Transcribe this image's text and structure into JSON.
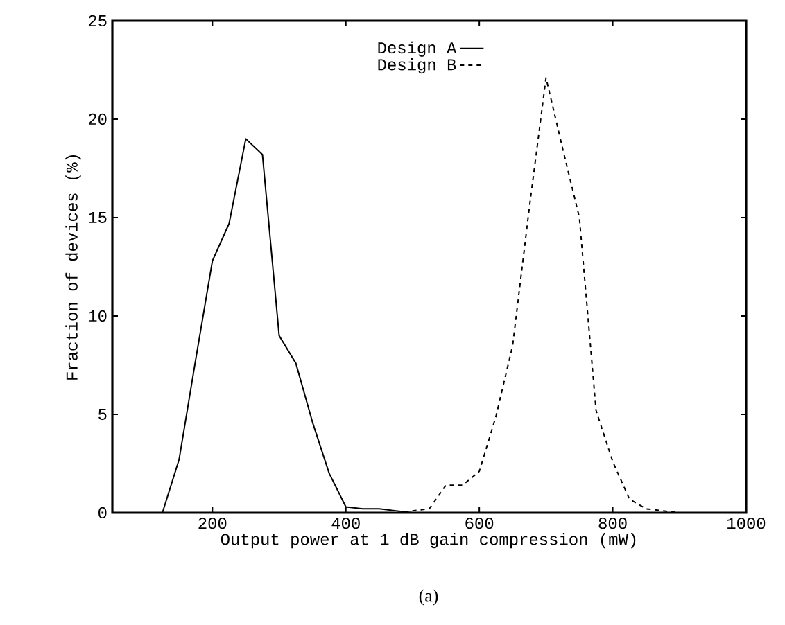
{
  "chart_data": {
    "type": "line",
    "xlabel": "Output power at 1 dB gain compression (mW)",
    "ylabel": "Fraction of devices (%)",
    "annotations": [
      "(a)"
    ],
    "xlim": [
      50,
      1000
    ],
    "ylim": [
      0,
      25
    ],
    "xticks": [
      200,
      400,
      600,
      800,
      1000
    ],
    "yticks": [
      0,
      5,
      10,
      15,
      20,
      25
    ],
    "legend": "top",
    "grid": false,
    "series": [
      {
        "name": "Design A",
        "color": "#000000",
        "line_style": "solid",
        "x": [
          125,
          150,
          175,
          200,
          225,
          250,
          275,
          300,
          325,
          350,
          375,
          400,
          425,
          450,
          475,
          500
        ],
        "values": [
          0,
          2.7,
          7.8,
          12.8,
          14.7,
          19.0,
          18.2,
          9.0,
          7.6,
          4.6,
          2.0,
          0.3,
          0.2,
          0.2,
          0.1,
          0
        ]
      },
      {
        "name": "Design B",
        "color": "#000000",
        "line_style": "dashed",
        "x": [
          475,
          500,
          525,
          550,
          575,
          600,
          625,
          650,
          675,
          700,
          725,
          750,
          775,
          800,
          825,
          850,
          875,
          900
        ],
        "values": [
          0,
          0.1,
          0.2,
          1.4,
          1.4,
          2.1,
          4.9,
          8.5,
          15.5,
          22.1,
          18.5,
          15.0,
          5.2,
          2.6,
          0.7,
          0.2,
          0.1,
          0
        ]
      }
    ]
  }
}
